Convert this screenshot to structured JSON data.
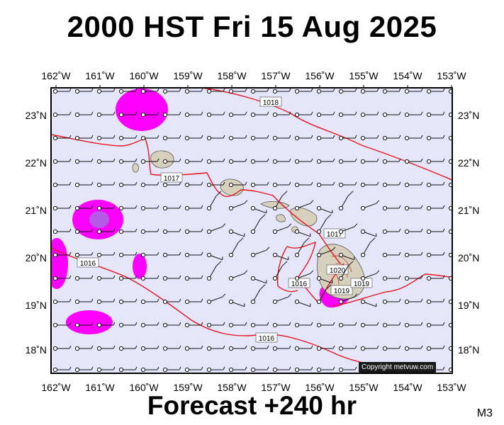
{
  "header": {
    "title": "2000 HST Fri 15 Aug 2025"
  },
  "footer": {
    "forecast": "Forecast +240 hr",
    "model_code": "M3"
  },
  "copyright": "Copyright metvuw.com",
  "map": {
    "lon_labels": [
      "162˚W",
      "161˚W",
      "160˚W",
      "159˚W",
      "158˚W",
      "157˚W",
      "156˚W",
      "155˚W",
      "154˚W",
      "153˚W"
    ],
    "lat_labels": [
      "23˚N",
      "22˚N",
      "21˚N",
      "20˚N",
      "19˚N",
      "18˚N"
    ],
    "isobar_labels": [
      "1018",
      "1017",
      "1016",
      "1016",
      "1017",
      "1020",
      "1019",
      "1016",
      "1019"
    ],
    "colors": {
      "ocean": "#e6e6fa",
      "isobar": "#e8141b",
      "rain_light": "#ff00ff",
      "rain_heavy": "#b45ae6",
      "land": "#d6d0bc"
    }
  }
}
